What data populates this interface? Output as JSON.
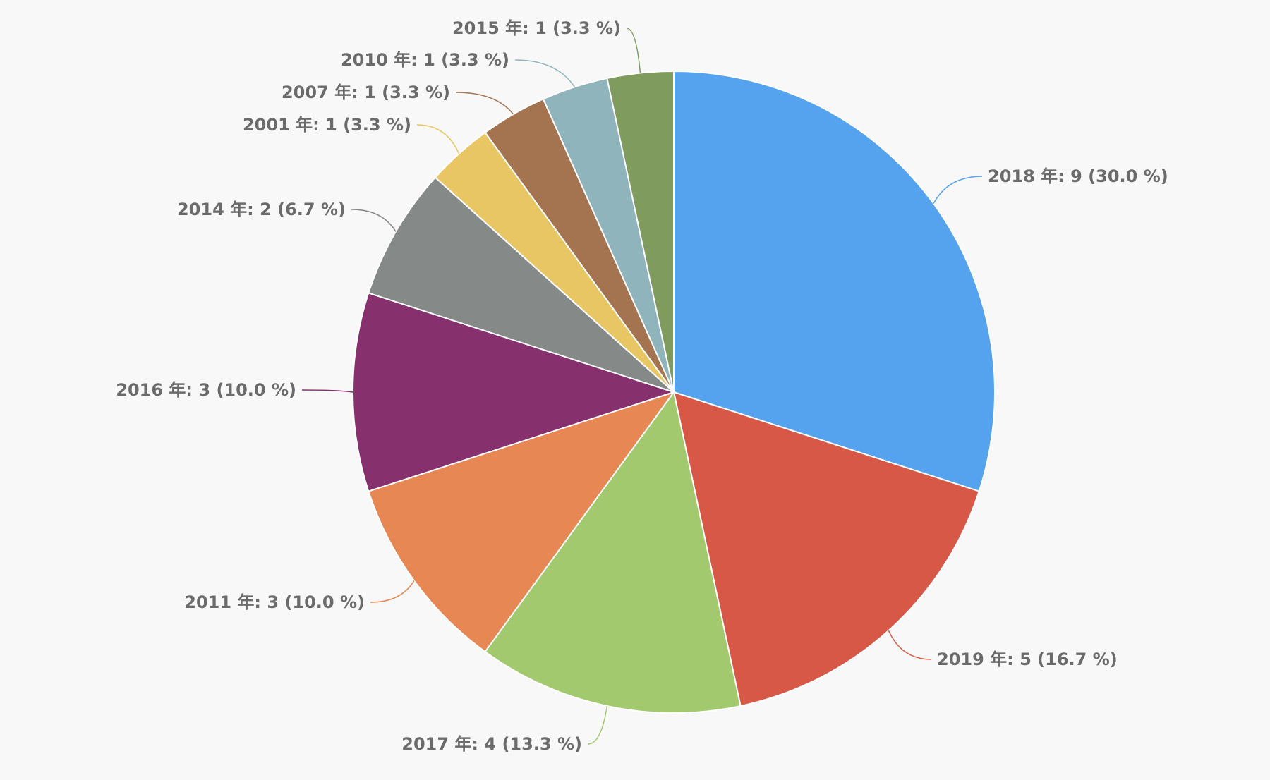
{
  "chart_data": {
    "type": "pie",
    "title": "",
    "slices": [
      {
        "label": "2018 年",
        "value": 9,
        "percent": 30.0,
        "color": "#55a2ee",
        "text": "2018 年: 9 (30.0 %)"
      },
      {
        "label": "2019 年",
        "value": 5,
        "percent": 16.7,
        "color": "#d75846",
        "text": "2019 年: 5 (16.7 %)"
      },
      {
        "label": "2017 年",
        "value": 4,
        "percent": 13.3,
        "color": "#a3c96e",
        "text": "2017 年: 4 (13.3 %)"
      },
      {
        "label": "2011 年",
        "value": 3,
        "percent": 10.0,
        "color": "#e68754",
        "text": "2011 年: 3 (10.0 %)"
      },
      {
        "label": "2016 年",
        "value": 3,
        "percent": 10.0,
        "color": "#87306e",
        "text": "2016 年: 3 (10.0 %)"
      },
      {
        "label": "2014 年",
        "value": 2,
        "percent": 6.7,
        "color": "#858a89",
        "text": "2014 年: 2 (6.7 %)"
      },
      {
        "label": "2001 年",
        "value": 1,
        "percent": 3.3,
        "color": "#e8c663",
        "text": "2001 年: 1 (3.3 %)"
      },
      {
        "label": "2007 年",
        "value": 1,
        "percent": 3.3,
        "color": "#a47350",
        "text": "2007 年: 1 (3.3 %)"
      },
      {
        "label": "2010 年",
        "value": 1,
        "percent": 3.3,
        "color": "#8fb4bb",
        "text": "2010 年: 1 (3.3 %)"
      },
      {
        "label": "2015 年",
        "value": 1,
        "percent": 3.3,
        "color": "#7f9b5e",
        "text": "2015 年: 1 (3.3 %)"
      }
    ]
  }
}
